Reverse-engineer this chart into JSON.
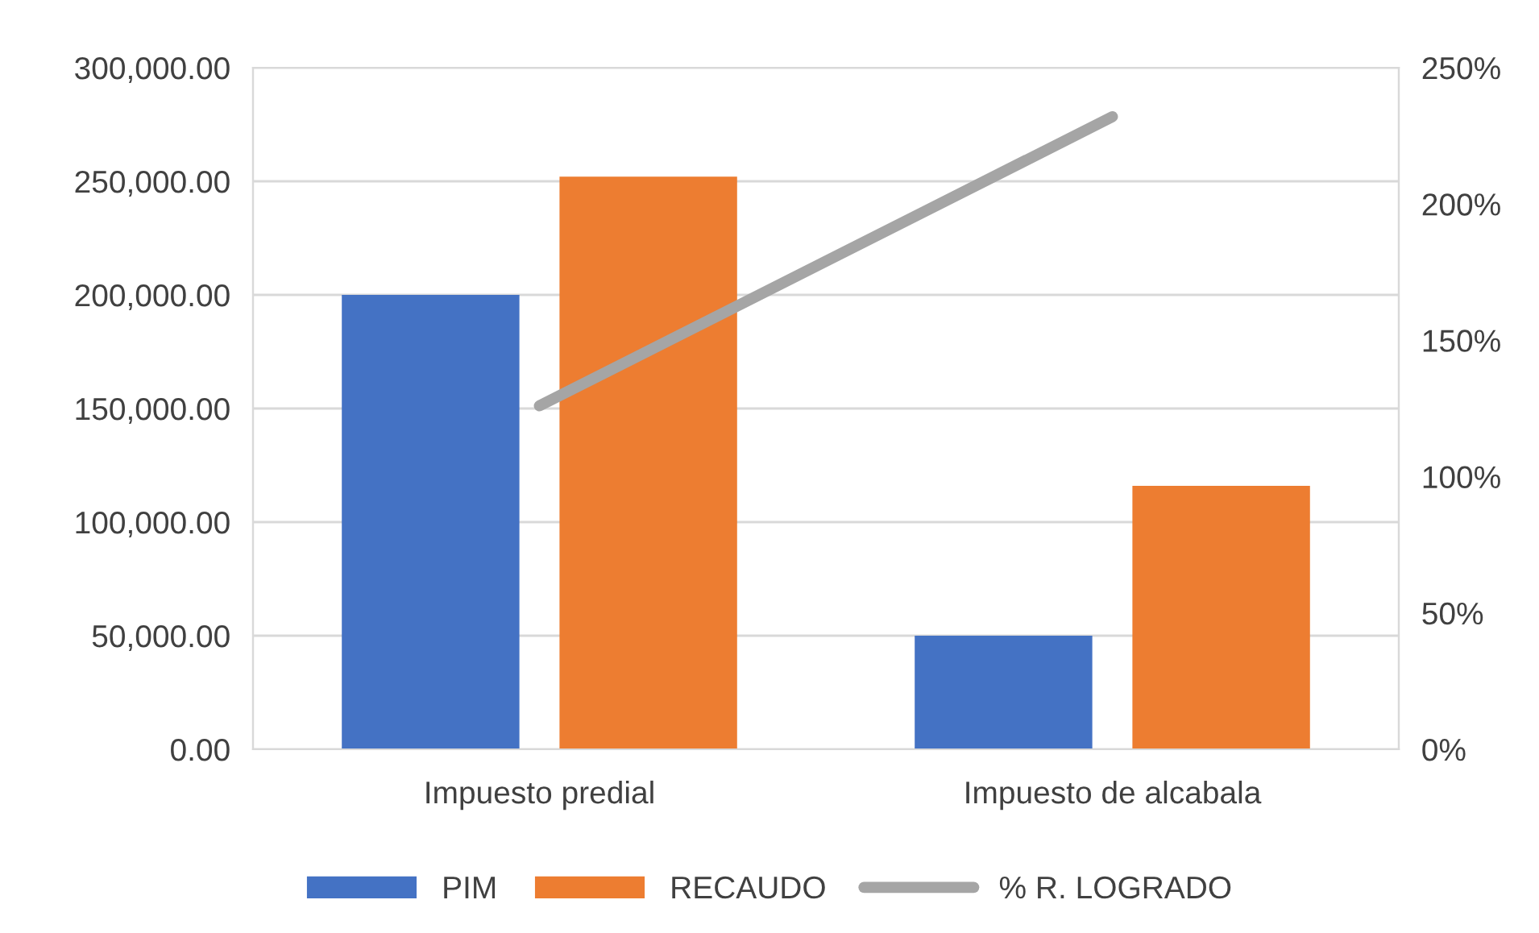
{
  "chart_data": {
    "type": "bar",
    "categories": [
      "Impuesto predial",
      "Impuesto de alcabala"
    ],
    "series": [
      {
        "name": "PIM",
        "color": "#4472c4",
        "values": [
          200000,
          50000
        ]
      },
      {
        "name": "RECAUDO",
        "color": "#ed7d31",
        "values": [
          252000,
          116000
        ]
      },
      {
        "name": "% R. LOGRADO",
        "color": "#a5a5a5",
        "type": "line",
        "axis": "y2",
        "values": [
          126,
          232
        ]
      }
    ],
    "ylim": [
      0,
      300000
    ],
    "yticks": [
      {
        "value": 0,
        "label": "0.00"
      },
      {
        "value": 50000,
        "label": "50,000.00"
      },
      {
        "value": 100000,
        "label": "100,000.00"
      },
      {
        "value": 150000,
        "label": "150,000.00"
      },
      {
        "value": 200000,
        "label": "200,000.00"
      },
      {
        "value": 250000,
        "label": "250,000.00"
      },
      {
        "value": 300000,
        "label": "300,000.00"
      }
    ],
    "y2lim": [
      0,
      250
    ],
    "y2ticks": [
      {
        "value": 0,
        "label": "0%"
      },
      {
        "value": 50,
        "label": "50%"
      },
      {
        "value": 100,
        "label": "100%"
      },
      {
        "value": 150,
        "label": "150%"
      },
      {
        "value": 200,
        "label": "200%"
      },
      {
        "value": 250,
        "label": "250%"
      }
    ],
    "grid": "y",
    "legend": "bottom",
    "marker": "none",
    "line_style": "solid"
  }
}
